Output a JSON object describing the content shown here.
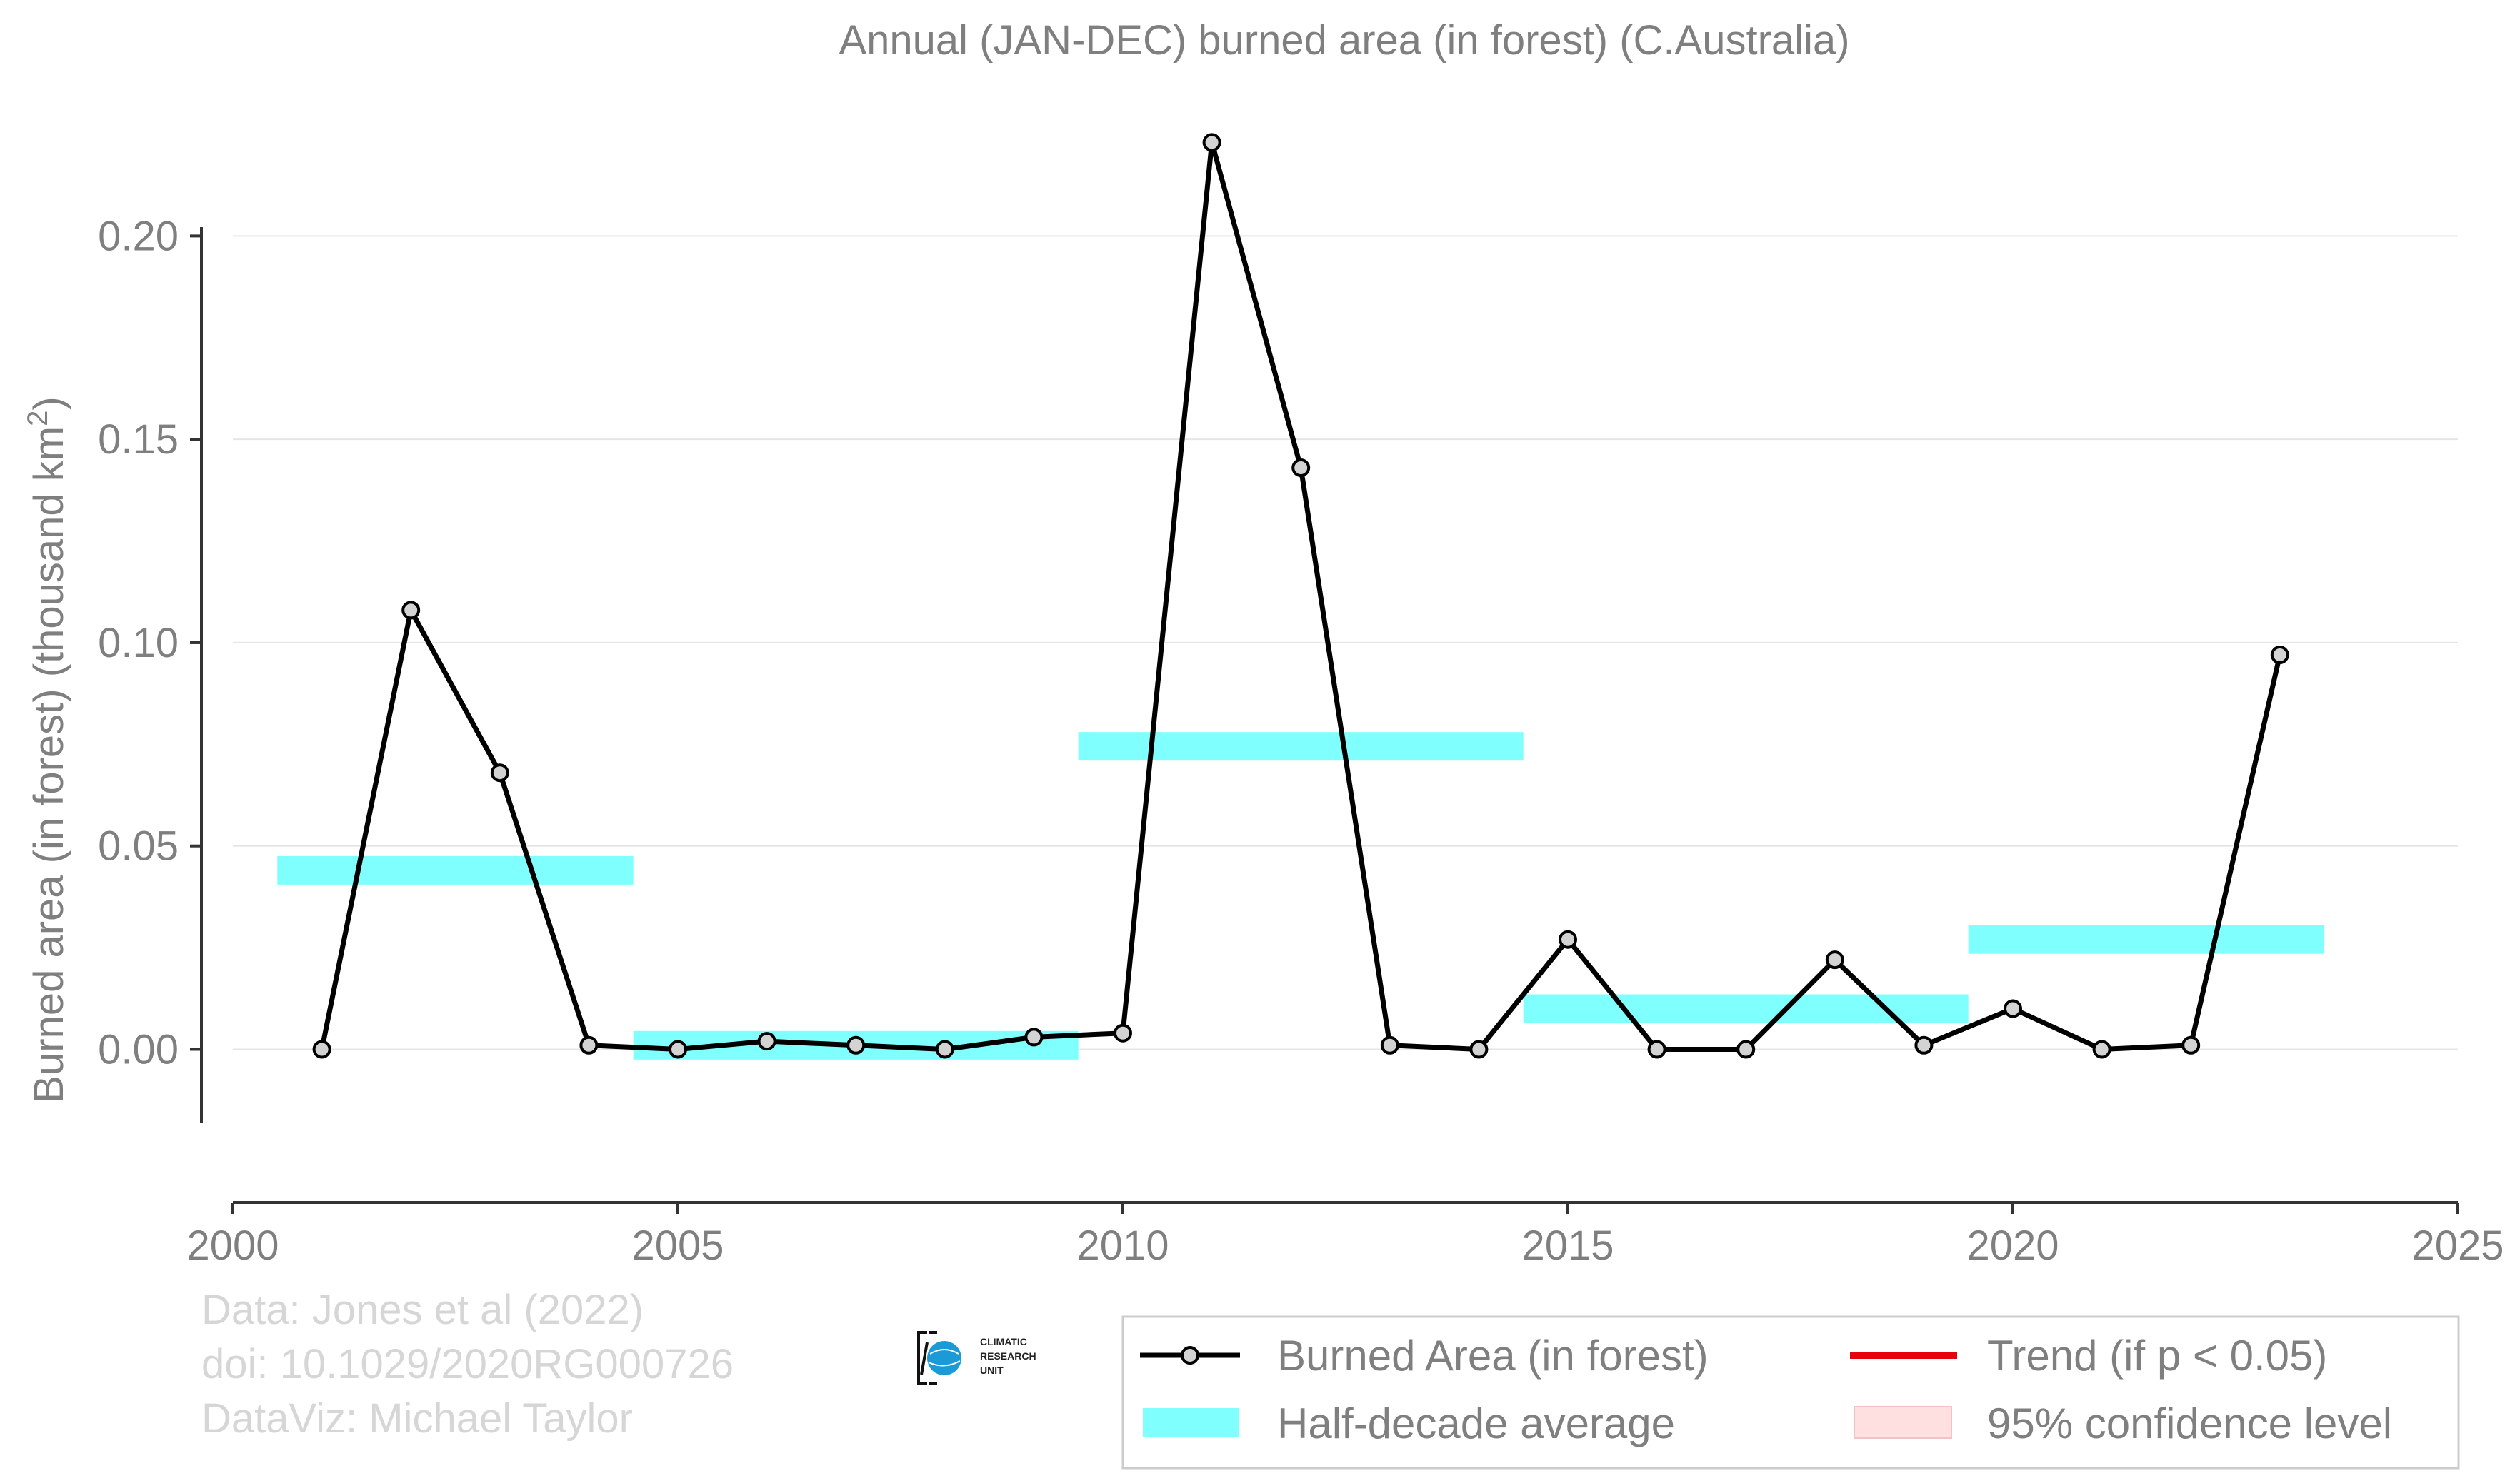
{
  "chart_data": {
    "type": "line",
    "title": "Annual (JAN-DEC) burned area (in forest) (C.Australia)",
    "ylabel_main": "Burned area (in forest) (thousand km",
    "ylabel_sup": "2",
    "ylabel_end": ")",
    "xlabel": "",
    "xlim": [
      2000,
      2025
    ],
    "ylim": [
      -0.018,
      0.225
    ],
    "x_ticks": [
      2000,
      2005,
      2010,
      2015,
      2020,
      2025
    ],
    "x_tick_labels": [
      "2000",
      "2005",
      "2010",
      "2015",
      "2020",
      "2025"
    ],
    "y_ticks": [
      0.0,
      0.05,
      0.1,
      0.15,
      0.2
    ],
    "y_tick_labels": [
      "0.00",
      "0.05",
      "0.10",
      "0.15",
      "0.20"
    ],
    "grid": "horizontal",
    "series": [
      {
        "name": "Burned Area (in forest)",
        "color": "#000000",
        "marker_fill": "#d3d3d3",
        "x": [
          2001,
          2002,
          2003,
          2004,
          2005,
          2006,
          2007,
          2008,
          2009,
          2010,
          2011,
          2012,
          2013,
          2014,
          2015,
          2016,
          2017,
          2018,
          2019,
          2020,
          2021,
          2022,
          2023
        ],
        "y": [
          0.0,
          0.108,
          0.068,
          0.001,
          0.0,
          0.002,
          0.001,
          0.0,
          0.003,
          0.004,
          0.223,
          0.143,
          0.001,
          0.0,
          0.027,
          0.0,
          0.0,
          0.022,
          0.001,
          0.01,
          0.0,
          0.001,
          0.097
        ]
      }
    ],
    "half_decade_average": {
      "name": "Half-decade average",
      "color": "#80ffff",
      "segments": [
        {
          "x_start": 2000.5,
          "x_end": 2004.5,
          "y": 0.044
        },
        {
          "x_start": 2004.5,
          "x_end": 2009.5,
          "y": 0.001
        },
        {
          "x_start": 2009.5,
          "x_end": 2014.5,
          "y": 0.0745
        },
        {
          "x_start": 2014.5,
          "x_end": 2019.5,
          "y": 0.01
        },
        {
          "x_start": 2019.5,
          "x_end": 2023.5,
          "y": 0.027
        }
      ]
    },
    "legend": {
      "placement": "bottom-right",
      "entries": [
        {
          "label": "Burned Area (in forest)",
          "kind": "line-marker",
          "color": "#000000"
        },
        {
          "label": "Trend (if p < 0.05)",
          "kind": "line",
          "color": "#e8000b"
        },
        {
          "label": "Half-decade average",
          "kind": "band",
          "color": "#80ffff"
        },
        {
          "label": "95% confidence level",
          "kind": "band",
          "color": "#ffe0e0"
        }
      ]
    }
  },
  "credits": {
    "line1": "Data: Jones et al (2022)",
    "line2": "doi: 10.1029/2020RG000726",
    "line3": "DataViz: Michael Taylor"
  },
  "logo": {
    "line1": "CLIMATIC",
    "line2": "RESEARCH",
    "line3": "UNIT",
    "color": "#1a9ad6"
  }
}
